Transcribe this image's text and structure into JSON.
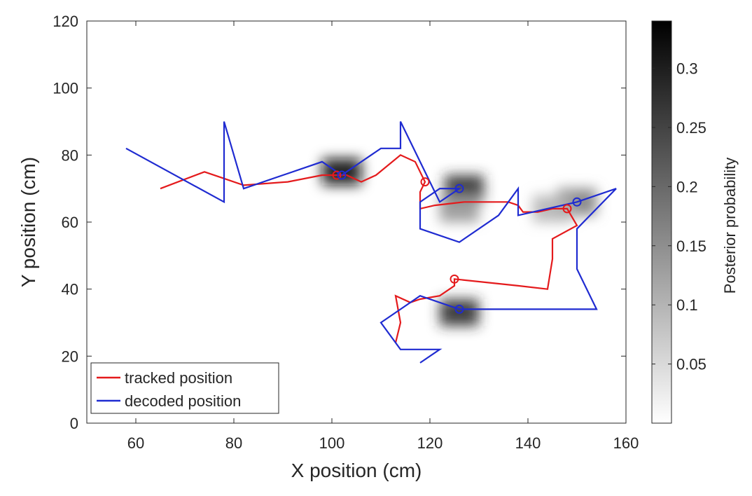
{
  "chart_data": {
    "type": "line",
    "title": "",
    "xlabel": "X position (cm)",
    "ylabel": "Y position (cm)",
    "xlim": [
      50,
      160
    ],
    "ylim": [
      0,
      120
    ],
    "xticks": [
      60,
      80,
      100,
      120,
      140,
      160
    ],
    "yticks": [
      0,
      20,
      40,
      60,
      80,
      100,
      120
    ],
    "grid": false,
    "legend_position": "bottom-left",
    "series": [
      {
        "name": "tracked position",
        "color": "#e41a1c",
        "x": [
          65,
          74,
          78,
          82,
          91,
          98,
          103,
          106,
          109,
          114,
          117,
          118,
          119,
          118,
          118,
          121,
          127,
          133,
          136,
          138,
          139,
          142,
          145,
          147,
          148,
          150,
          145,
          145,
          144,
          138,
          125,
          125,
          122,
          118,
          116,
          113,
          114,
          113
        ],
        "y": [
          70,
          75,
          73,
          71,
          72,
          74,
          74,
          72,
          74,
          80,
          78,
          75,
          72,
          69,
          64,
          65,
          66,
          66,
          66,
          65,
          63,
          63,
          64,
          64,
          64,
          59,
          55,
          49,
          40,
          41,
          43,
          41,
          38,
          37,
          36,
          38,
          30,
          24
        ]
      },
      {
        "name": "decoded position",
        "color": "#1f2bd1",
        "x": [
          58,
          78,
          78,
          82,
          98,
          102,
          106,
          110,
          114,
          114,
          118,
          122,
          126,
          122,
          118,
          118,
          126,
          134,
          138,
          138,
          150,
          158,
          150,
          150,
          154,
          126,
          118,
          114,
          110,
          114,
          122,
          118
        ],
        "y": [
          82,
          66,
          90,
          70,
          78,
          74,
          78,
          82,
          82,
          90,
          78,
          66,
          70,
          70,
          66,
          58,
          54,
          62,
          70,
          62,
          66,
          70,
          58,
          46,
          34,
          34,
          38,
          34,
          30,
          22,
          22,
          18
        ]
      }
    ],
    "tracked_markers": [
      {
        "x": 101,
        "y": 74
      },
      {
        "x": 119,
        "y": 72
      },
      {
        "x": 148,
        "y": 64
      },
      {
        "x": 125,
        "y": 43
      }
    ],
    "decoded_markers": [
      {
        "x": 102,
        "y": 74
      },
      {
        "x": 126,
        "y": 70
      },
      {
        "x": 150,
        "y": 66
      },
      {
        "x": 126,
        "y": 34
      }
    ],
    "posterior_blobs": [
      {
        "cx": 102,
        "cy": 75,
        "peak": 0.33
      },
      {
        "cx": 127,
        "cy": 70,
        "peak": 0.28
      },
      {
        "cx": 126,
        "cy": 64,
        "peak": 0.14
      },
      {
        "cx": 150,
        "cy": 66,
        "peak": 0.17
      },
      {
        "cx": 145,
        "cy": 64,
        "peak": 0.1
      },
      {
        "cx": 126,
        "cy": 33,
        "peak": 0.28
      }
    ],
    "colorbar": {
      "label": "Posterior probability",
      "range": [
        0,
        0.34
      ],
      "ticks": [
        0.05,
        0.1,
        0.15,
        0.2,
        0.25,
        0.3
      ],
      "tick_labels": [
        "0.05",
        "0.1",
        "0.15",
        "0.2",
        "0.25",
        "0.3"
      ]
    }
  }
}
